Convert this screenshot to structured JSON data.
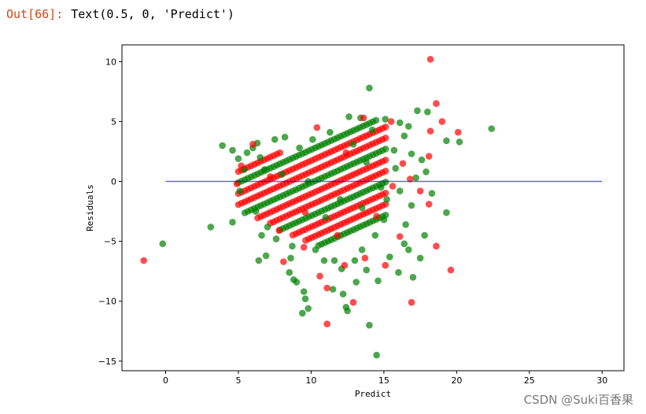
{
  "output_cell": {
    "prompt": "Out[66]:",
    "text": "Text(0.5, 0, 'Predict')"
  },
  "watermark": "CSDN @Suki百香果",
  "chart_data": {
    "type": "scatter",
    "xlabel": "Predict",
    "ylabel": "Residuals",
    "xlim": [
      -3,
      31.5
    ],
    "ylim": [
      -15.8,
      11.4
    ],
    "xticks": [
      0,
      5,
      10,
      15,
      20,
      25,
      30
    ],
    "yticks": [
      -15,
      -10,
      -5,
      0,
      5,
      10
    ],
    "hline": {
      "y": 0,
      "xmin": 0,
      "xmax": 30,
      "color": "#0000ff"
    },
    "series": [
      {
        "color": "#008000",
        "points": [
          [
            -0.2,
            -5.2
          ],
          [
            3.1,
            -3.8
          ],
          [
            3.9,
            3.0
          ],
          [
            4.6,
            2.6
          ],
          [
            4.6,
            -3.4
          ],
          [
            5.0,
            1.9
          ],
          [
            5.6,
            2.4
          ],
          [
            6.0,
            2.8
          ],
          [
            6.3,
            3.2
          ],
          [
            5.4,
            1.0
          ],
          [
            5.1,
            -0.8
          ],
          [
            6.2,
            -2.5
          ],
          [
            6.6,
            -4.5
          ],
          [
            6.9,
            -6.2
          ],
          [
            7.5,
            3.5
          ],
          [
            8.2,
            3.7
          ],
          [
            6.4,
            -6.6
          ],
          [
            8.5,
            -7.6
          ],
          [
            8.8,
            -8.2
          ],
          [
            9.0,
            -8.4
          ],
          [
            9.5,
            -9.2
          ],
          [
            9.6,
            -9.8
          ],
          [
            9.8,
            -10.6
          ],
          [
            9.4,
            -11.0
          ],
          [
            12.2,
            -9.4
          ],
          [
            12.4,
            -10.5
          ],
          [
            12.5,
            -10.8
          ],
          [
            13.1,
            -8.4
          ],
          [
            14.0,
            -12.0
          ],
          [
            14.5,
            -14.5
          ],
          [
            14.6,
            -8.3
          ],
          [
            15.4,
            -6.3
          ],
          [
            16.0,
            -7.6
          ],
          [
            17.0,
            -8.0
          ],
          [
            16.7,
            -5.7
          ],
          [
            17.5,
            -6.4
          ],
          [
            17.8,
            -4.5
          ],
          [
            18.3,
            -1.0
          ],
          [
            17.3,
            5.9
          ],
          [
            18.0,
            5.8
          ],
          [
            19.3,
            3.4
          ],
          [
            20.2,
            3.3
          ],
          [
            22.4,
            4.4
          ],
          [
            19.3,
            -2.6
          ],
          [
            14.0,
            7.8
          ],
          [
            13.4,
            5.3
          ],
          [
            12.6,
            5.4
          ],
          [
            15.1,
            5.2
          ],
          [
            16.1,
            4.9
          ],
          [
            16.7,
            4.6
          ],
          [
            16.4,
            3.8
          ],
          [
            15.7,
            2.6
          ],
          [
            16.9,
            2.3
          ],
          [
            17.6,
            1.8
          ],
          [
            17.9,
            0.8
          ],
          [
            16.1,
            -0.8
          ],
          [
            16.9,
            -2.0
          ],
          [
            16.5,
            -3.6
          ],
          [
            15.0,
            -3.2
          ],
          [
            14.4,
            -4.5
          ],
          [
            13.5,
            -5.7
          ],
          [
            13.0,
            -6.6
          ],
          [
            12.1,
            -7.3
          ],
          [
            11.6,
            -6.6
          ],
          [
            10.9,
            -6.6
          ],
          [
            10.3,
            -5.7
          ],
          [
            8.7,
            -5.4
          ],
          [
            7.6,
            -4.8
          ],
          [
            7.0,
            -3.8
          ],
          [
            13.8,
            1.6
          ],
          [
            14.2,
            4.3
          ],
          [
            11.3,
            4.1
          ],
          [
            10.1,
            3.5
          ],
          [
            9.2,
            2.8
          ],
          [
            12.0,
            -1.5
          ],
          [
            11.0,
            -3.0
          ],
          [
            13.5,
            -2.2
          ],
          [
            15.2,
            -1.5
          ],
          [
            8.0,
            0.6
          ],
          [
            6.8,
            1.0
          ],
          [
            9.8,
            0.0
          ],
          [
            17.2,
            0.3
          ],
          [
            16.4,
            -5.2
          ],
          [
            13.8,
            -7.4
          ],
          [
            11.5,
            -9.0
          ],
          [
            8.6,
            -6.4
          ],
          [
            6.5,
            2.0
          ],
          [
            12.9,
            3.1
          ],
          [
            15.8,
            1.1
          ],
          [
            14.8,
            -0.5
          ]
        ]
      },
      {
        "color": "#ff0000",
        "points": [
          [
            -1.5,
            -6.6
          ],
          [
            18.2,
            10.2
          ],
          [
            18.6,
            6.5
          ],
          [
            19.0,
            5.0
          ],
          [
            18.2,
            4.2
          ],
          [
            20.1,
            4.1
          ],
          [
            18.1,
            2.1
          ],
          [
            18.1,
            -1.9
          ],
          [
            18.6,
            -5.4
          ],
          [
            19.6,
            -7.4
          ],
          [
            16.9,
            -10.1
          ],
          [
            11.1,
            -11.9
          ],
          [
            12.9,
            -10.1
          ],
          [
            15.1,
            -7.0
          ],
          [
            9.5,
            -5.5
          ],
          [
            7.8,
            -4.1
          ],
          [
            6.0,
            3.1
          ],
          [
            5.2,
            1.3
          ],
          [
            4.9,
            -0.2
          ],
          [
            13.6,
            5.3
          ],
          [
            15.5,
            5.0
          ],
          [
            16.3,
            1.5
          ],
          [
            17.5,
            -0.8
          ],
          [
            16.1,
            -4.6
          ],
          [
            13.7,
            -6.4
          ],
          [
            11.1,
            -8.9
          ],
          [
            8.1,
            -6.7
          ],
          [
            10.4,
            4.5
          ],
          [
            12.4,
            2.4
          ],
          [
            9.6,
            -2.6
          ],
          [
            14.5,
            -2.9
          ],
          [
            15.6,
            -0.4
          ],
          [
            11.8,
            -4.5
          ],
          [
            7.2,
            0.4
          ],
          [
            16.8,
            0.2
          ],
          [
            10.6,
            -7.9
          ],
          [
            12.3,
            -7.0
          ]
        ]
      }
    ]
  }
}
